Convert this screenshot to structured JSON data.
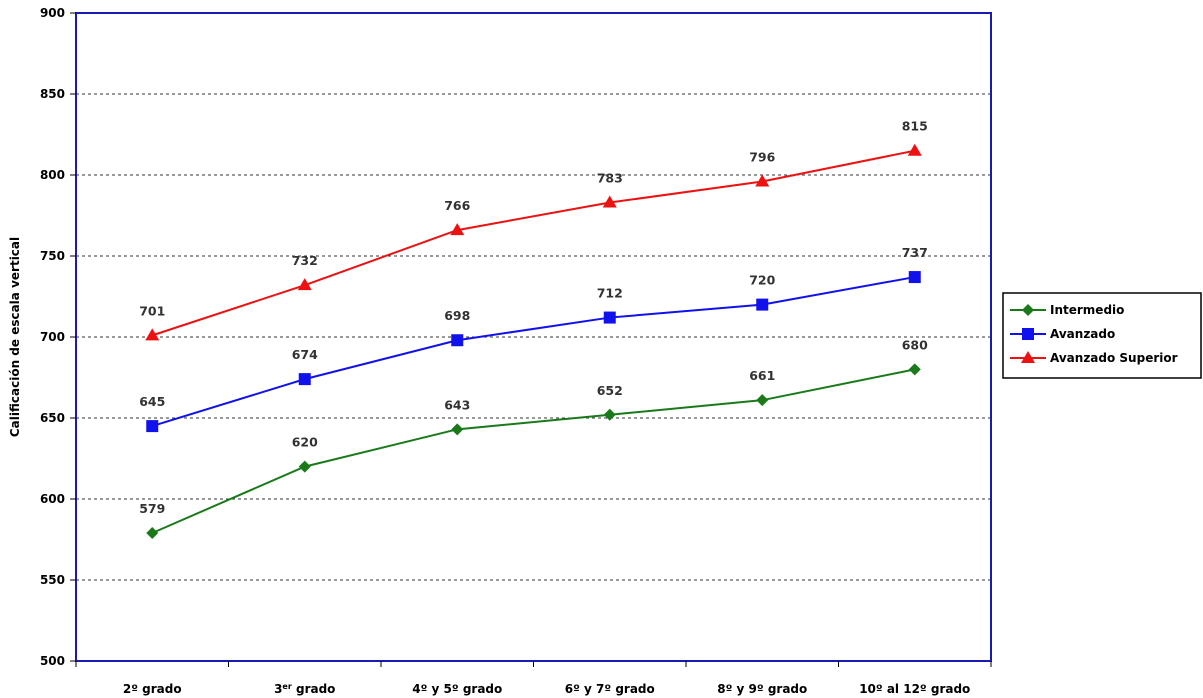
{
  "chart_data": {
    "type": "line",
    "title": "",
    "xlabel": "",
    "ylabel": "Calificación de escala vertical",
    "ylim": [
      500,
      900
    ],
    "yticks": [
      500,
      550,
      600,
      650,
      700,
      750,
      800,
      850,
      900
    ],
    "grid": true,
    "legend_position": "right",
    "categories": [
      {
        "pre": "2º grado",
        "sup": "",
        "post": ""
      },
      {
        "pre": "3",
        "sup": "er",
        "post": " grado"
      },
      {
        "pre": "4º y 5º grado",
        "sup": "",
        "post": ""
      },
      {
        "pre": "6º y 7º grado",
        "sup": "",
        "post": ""
      },
      {
        "pre": "8º y 9º grado",
        "sup": "",
        "post": ""
      },
      {
        "pre": "10º al 12º grado",
        "sup": "",
        "post": ""
      }
    ],
    "series": [
      {
        "name": "Intermedio",
        "color": "#1a7a1a",
        "marker": "diamond",
        "values": [
          579,
          620,
          643,
          652,
          661,
          680
        ]
      },
      {
        "name": "Avanzado",
        "color": "#1111ee",
        "marker": "square",
        "values": [
          645,
          674,
          698,
          712,
          720,
          737
        ]
      },
      {
        "name": "Avanzado Superior",
        "color": "#ee1111",
        "marker": "triangle",
        "values": [
          701,
          732,
          766,
          783,
          796,
          815
        ]
      }
    ]
  }
}
